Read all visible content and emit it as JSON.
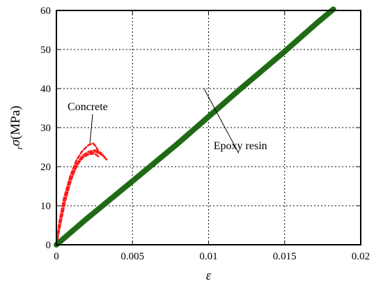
{
  "chart_data": {
    "type": "line",
    "title": "",
    "xlabel": "ε",
    "ylabel_main": "σ",
    "ylabel_sub": "r",
    "ylabel_unit": "(MPa)",
    "xlim": [
      0,
      0.02
    ],
    "ylim": [
      0,
      60
    ],
    "x_ticks": [
      0,
      0.005,
      0.01,
      0.015,
      0.02
    ],
    "x_tick_labels": [
      "0",
      "0.005",
      "0.01",
      "0.015",
      "0.02"
    ],
    "y_ticks": [
      0,
      10,
      20,
      30,
      40,
      50,
      60
    ],
    "y_tick_labels": [
      "0",
      "10",
      "20",
      "30",
      "40",
      "50",
      "60"
    ],
    "grid": true,
    "series": [
      {
        "name": "Concrete",
        "color": "#ff1a1a",
        "style": "dashed",
        "curves": [
          [
            [
              0,
              0
            ],
            [
              0.0002,
              6
            ],
            [
              0.0005,
              12
            ],
            [
              0.0009,
              17.5
            ],
            [
              0.0013,
              21.5
            ],
            [
              0.0017,
              24
            ],
            [
              0.0021,
              25.5
            ],
            [
              0.0024,
              26
            ],
            [
              0.0026,
              25.2
            ],
            [
              0.0028,
              23.5
            ]
          ],
          [
            [
              0,
              0
            ],
            [
              0.0002,
              5.5
            ],
            [
              0.0005,
              11
            ],
            [
              0.0009,
              16.5
            ],
            [
              0.0013,
              20.5
            ],
            [
              0.0017,
              22.8
            ],
            [
              0.0021,
              23.8
            ],
            [
              0.0025,
              24.2
            ],
            [
              0.0029,
              23.6
            ],
            [
              0.0032,
              22.3
            ]
          ],
          [
            [
              0,
              0
            ],
            [
              0.0003,
              6
            ],
            [
              0.0006,
              11.5
            ],
            [
              0.001,
              17
            ],
            [
              0.0014,
              20.8
            ],
            [
              0.0018,
              22.6
            ],
            [
              0.0022,
              23.5
            ],
            [
              0.0026,
              23.8
            ],
            [
              0.003,
              23
            ],
            [
              0.0033,
              21.8
            ]
          ],
          [
            [
              0,
              0
            ],
            [
              0.0002,
              5
            ],
            [
              0.0005,
              10.5
            ],
            [
              0.0009,
              16
            ],
            [
              0.0013,
              20
            ],
            [
              0.0017,
              22.2
            ],
            [
              0.0021,
              23.1
            ],
            [
              0.0025,
              23.4
            ],
            [
              0.0028,
              22.5
            ]
          ]
        ]
      },
      {
        "name": "Epoxy resin",
        "color": "#1f6b14",
        "style": "solid",
        "curves": [
          [
            [
              0,
              0
            ],
            [
              0.002,
              6.7
            ],
            [
              0.005,
              16.3
            ],
            [
              0.008,
              26
            ],
            [
              0.01,
              32.8
            ],
            [
              0.012,
              39.6
            ],
            [
              0.015,
              49.5
            ],
            [
              0.017,
              56.4
            ],
            [
              0.0182,
              60.3
            ]
          ]
        ]
      }
    ],
    "annotations": [
      {
        "text": "Concrete",
        "x": 0.0011,
        "y": 34.5,
        "pointer_x": 0.0022,
        "pointer_y": 26
      },
      {
        "text": "Epoxy resin",
        "x": 0.0107,
        "y": 24.5,
        "pointer_x": 0.0097,
        "pointer_y": 40
      }
    ]
  }
}
